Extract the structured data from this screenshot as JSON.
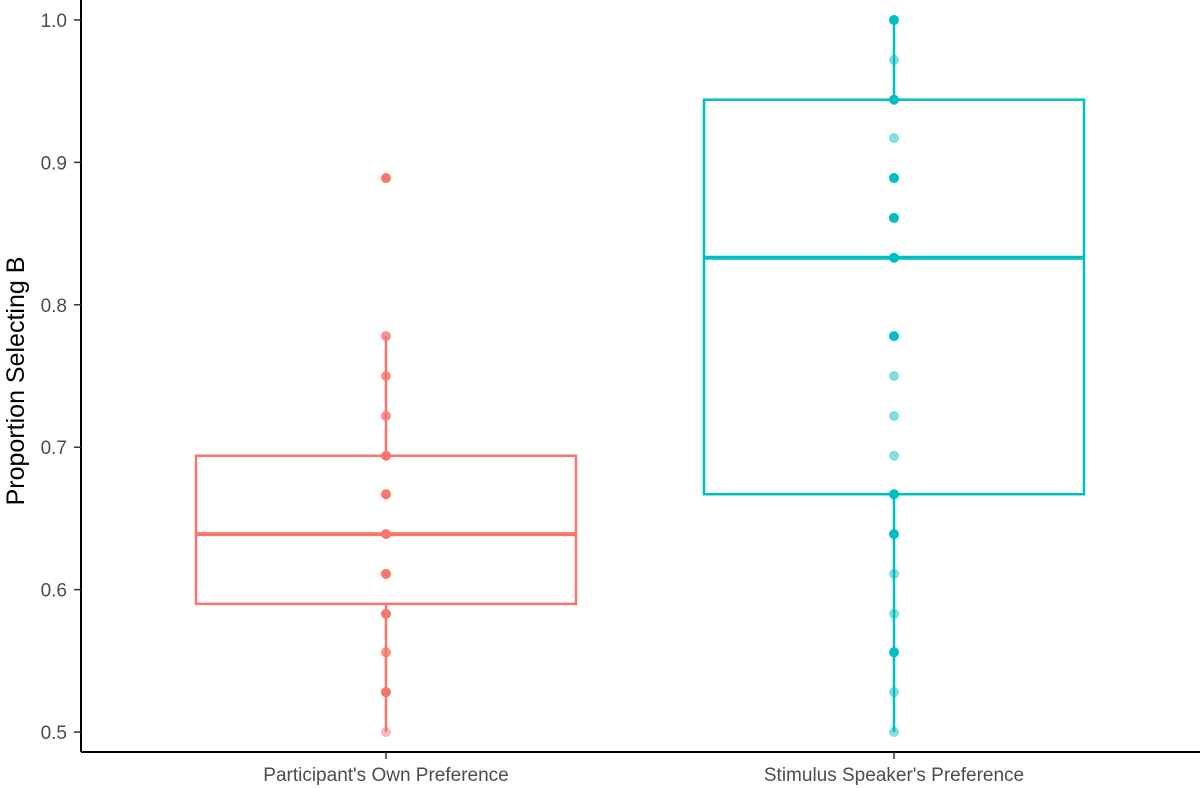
{
  "chart_data": {
    "type": "boxplot",
    "title": "",
    "xlabel": "",
    "ylabel": "Proportion Selecting B",
    "ylim": [
      0.486,
      1.014
    ],
    "yticks": [
      0.5,
      0.6,
      0.7,
      0.8,
      0.9,
      1.0
    ],
    "ytick_labels": [
      "0.5",
      "0.6",
      "0.7",
      "0.8",
      "0.9",
      "1.0"
    ],
    "grid": false,
    "legend": "none",
    "categories": [
      "Participant's Own Preference",
      "Stimulus Speaker's Preference"
    ],
    "series": [
      {
        "category": "Participant's Own Preference",
        "color": "#f8766d",
        "box": {
          "whisker_low": 0.5,
          "q1": 0.59,
          "median": 0.639,
          "q3": 0.694,
          "whisker_high": 0.778
        },
        "outliers": [
          0.889
        ],
        "points": [
          {
            "y": 0.889,
            "alpha": 1.0
          },
          {
            "y": 0.778,
            "alpha": 0.8
          },
          {
            "y": 0.75,
            "alpha": 0.8
          },
          {
            "y": 0.722,
            "alpha": 0.8
          },
          {
            "y": 0.694,
            "alpha": 1.0
          },
          {
            "y": 0.667,
            "alpha": 1.0
          },
          {
            "y": 0.639,
            "alpha": 1.0
          },
          {
            "y": 0.611,
            "alpha": 1.0
          },
          {
            "y": 0.583,
            "alpha": 1.0
          },
          {
            "y": 0.556,
            "alpha": 0.8
          },
          {
            "y": 0.528,
            "alpha": 1.0
          },
          {
            "y": 0.5,
            "alpha": 0.5
          }
        ]
      },
      {
        "category": "Stimulus Speaker's Preference",
        "color": "#00bfc4",
        "box": {
          "whisker_low": 0.5,
          "q1": 0.667,
          "median": 0.833,
          "q3": 0.944,
          "whisker_high": 1.0
        },
        "outliers": [],
        "points": [
          {
            "y": 1.0,
            "alpha": 1.0
          },
          {
            "y": 0.972,
            "alpha": 0.5
          },
          {
            "y": 0.944,
            "alpha": 1.0
          },
          {
            "y": 0.917,
            "alpha": 0.5
          },
          {
            "y": 0.889,
            "alpha": 1.0
          },
          {
            "y": 0.861,
            "alpha": 1.0
          },
          {
            "y": 0.833,
            "alpha": 1.0
          },
          {
            "y": 0.778,
            "alpha": 1.0
          },
          {
            "y": 0.75,
            "alpha": 0.5
          },
          {
            "y": 0.722,
            "alpha": 0.5
          },
          {
            "y": 0.694,
            "alpha": 0.5
          },
          {
            "y": 0.667,
            "alpha": 1.0
          },
          {
            "y": 0.639,
            "alpha": 1.0
          },
          {
            "y": 0.611,
            "alpha": 0.5
          },
          {
            "y": 0.583,
            "alpha": 0.5
          },
          {
            "y": 0.556,
            "alpha": 1.0
          },
          {
            "y": 0.528,
            "alpha": 0.5
          },
          {
            "y": 0.5,
            "alpha": 0.5
          }
        ]
      }
    ]
  }
}
